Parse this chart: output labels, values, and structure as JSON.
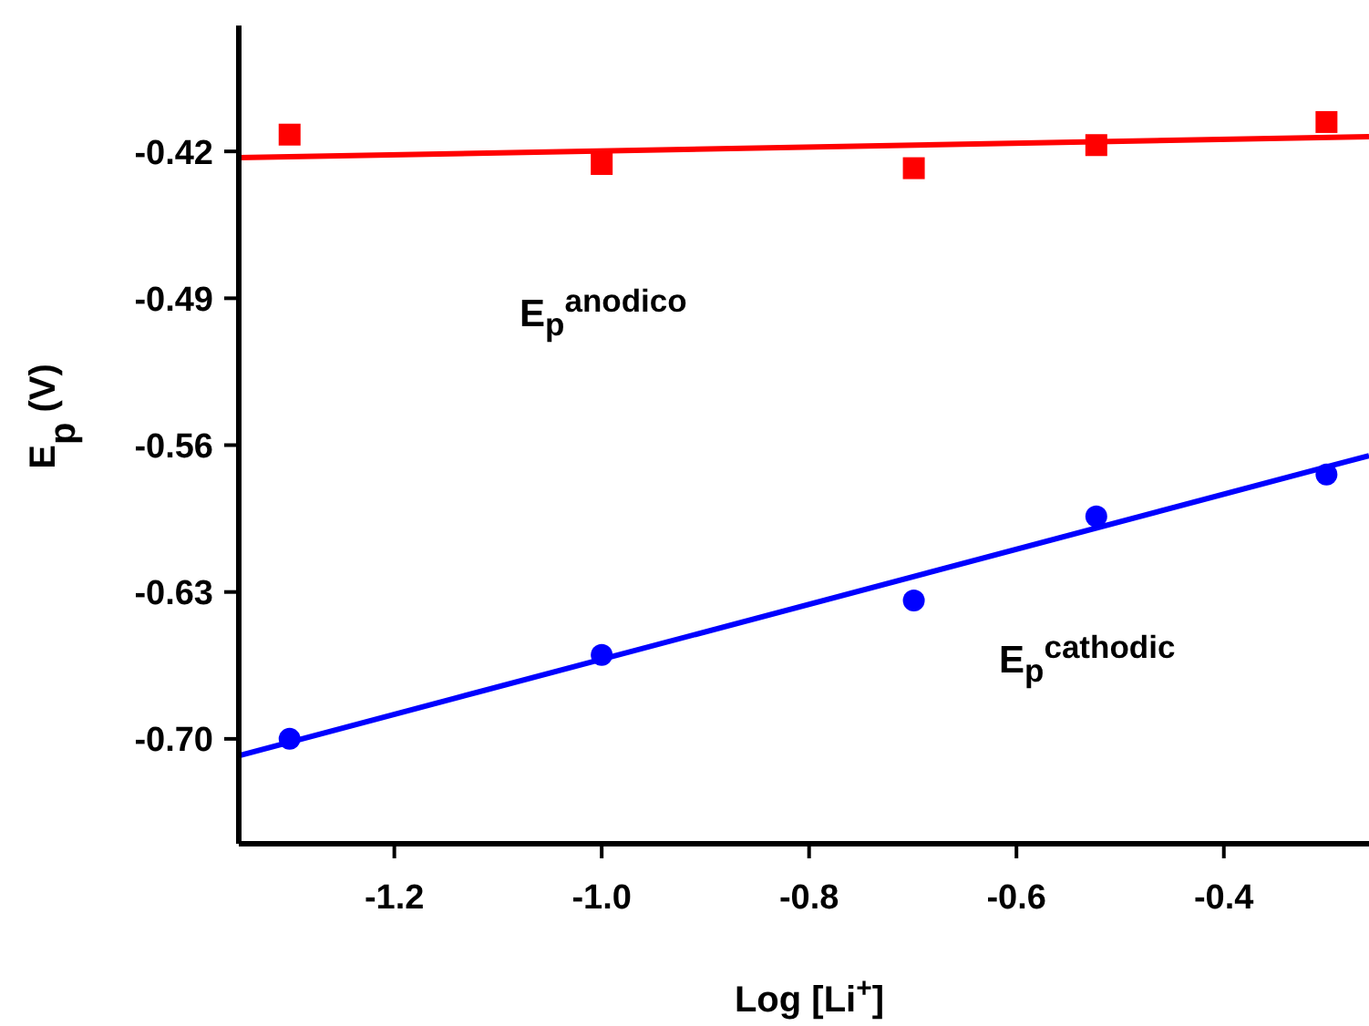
{
  "chart_data": {
    "type": "scatter",
    "xlabel": "Log [Li$^{+}$]",
    "ylabel": "E$_{p}$ (V)",
    "annotations": [
      "E$_{p}$$^{anodico}$",
      "E$_{p}$$^{cathodic}$"
    ],
    "xlim": [
      -1.35,
      -0.26
    ],
    "xticks": [
      {
        "value": -1.2,
        "label": "-1.2"
      },
      {
        "value": -1,
        "label": "-1.0"
      },
      {
        "value": -0.8,
        "label": "-0.8"
      },
      {
        "value": -0.6,
        "label": "-0.6"
      },
      {
        "value": -0.4,
        "label": "-0.4"
      }
    ],
    "ylim": [
      -0.75,
      -0.36
    ],
    "yticks": [
      -0.42,
      -0.49,
      -0.56,
      -0.63,
      {
        "value": -0.7,
        "label": "-0.70"
      }
    ],
    "series": [
      {
        "marker": "square",
        "color": "#ff0000",
        "x": [
          -1.301,
          -1,
          -0.699,
          -0.523,
          -0.301
        ],
        "values": [
          -0.412,
          -0.426,
          -0.428,
          -0.417,
          -0.406
        ]
      },
      {
        "marker": "circle",
        "color": "#0000ff",
        "x": [
          -1.301,
          -1,
          -0.699,
          -0.523,
          -0.301
        ],
        "values": [
          -0.7,
          -0.66,
          -0.634,
          -0.594,
          -0.574
        ]
      },
      {
        "type": "line",
        "color": "#ff0000",
        "x": [
          -1.35,
          -0.26
        ],
        "values": [
          -0.423,
          -0.413
        ]
      },
      {
        "type": "line",
        "color": "#0000ff",
        "x": [
          -1.35,
          -0.26
        ],
        "values": [
          -0.708,
          -0.565
        ]
      }
    ]
  }
}
